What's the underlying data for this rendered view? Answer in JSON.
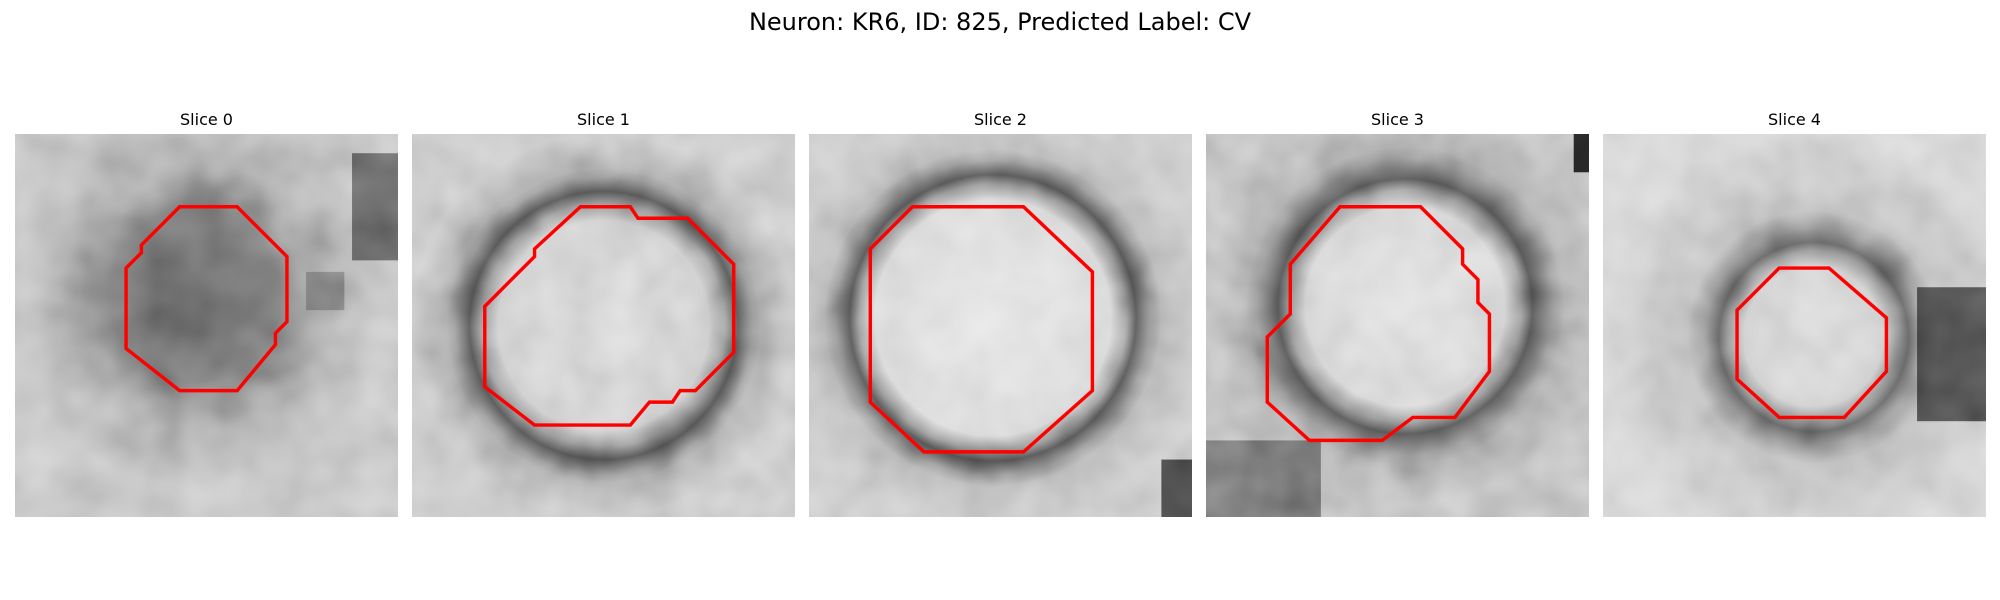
{
  "figure": {
    "title": "Neuron: KR6, ID: 825, Predicted Label: CV"
  },
  "panels": [
    {
      "title": "Slice 0",
      "ring": "dark",
      "background": "mid",
      "contour_color": "#ff0000"
    },
    {
      "title": "Slice 1",
      "ring": "dark",
      "background": "light",
      "contour_color": "#ff0000"
    },
    {
      "title": "Slice 2",
      "ring": "dark",
      "background": "light",
      "contour_color": "#ff0000"
    },
    {
      "title": "Slice 3",
      "ring": "dark",
      "background": "light",
      "contour_color": "#ff0000"
    },
    {
      "title": "Slice 4",
      "ring": "dark",
      "background": "light",
      "contour_color": "#ff0000"
    }
  ]
}
